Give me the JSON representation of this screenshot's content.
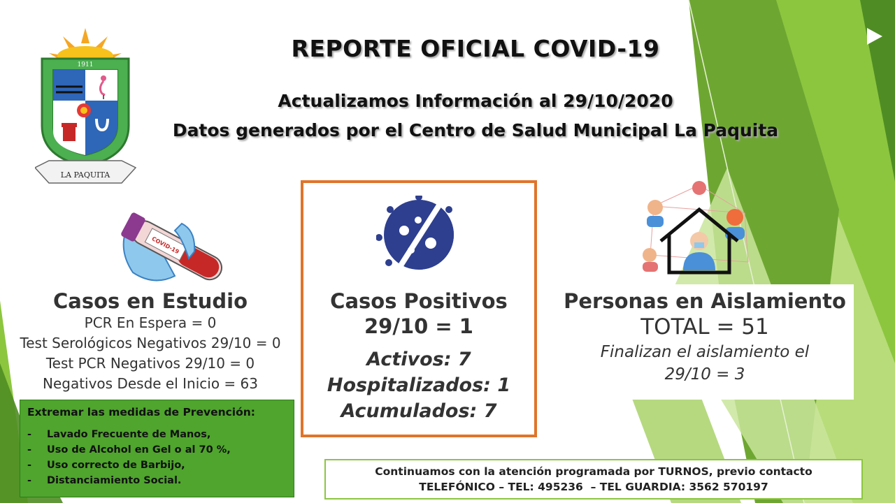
{
  "header": {
    "title": "REPORTE OFICIAL COVID-19",
    "subtitle_1": "Actualizamos Información al 29/10/2020",
    "subtitle_2": "Datos generados por el Centro de Salud Municipal La Paquita"
  },
  "crest": {
    "year": "1911",
    "ribbon": "LA PAQUITA"
  },
  "test_tube": {
    "label": "COVID-19"
  },
  "estudio": {
    "title": "Casos en Estudio",
    "lines": [
      "PCR En Espera = 0",
      "Test Serológicos Negativos 29/10 = 0",
      "Test PCR Negativos 29/10 = 0",
      "Negativos Desde el Inicio = 63"
    ]
  },
  "positivos": {
    "title": "Casos Positivos",
    "date_count": "29/10 = 1",
    "activos": "Activos: 7",
    "hospitalizados": "Hospitalizados: 1",
    "acumulados": "Acumulados: 7"
  },
  "aislamiento": {
    "title": "Personas en Aislamiento",
    "total": "TOTAL = 51",
    "finalizan_1": "Finalizan el aislamiento el",
    "finalizan_2": "29/10 = 3"
  },
  "prevencion": {
    "heading": "Extremar las medidas de Prevención:",
    "items": [
      "Lavado Frecuente de Manos,",
      "Uso de Alcohol en Gel o al 70 %,",
      "Uso correcto de Barbijo,",
      "Distanciamiento Social."
    ]
  },
  "contacto": {
    "line_1": "Continuamos con la atención programada por TURNOS, previo contacto",
    "line_2": "TELEFÓNICO – TEL: 495236  – TEL GUARDIA: 3562 570197"
  },
  "colors": {
    "accent_orange": "#e0742a",
    "green_dark": "#4fa52d",
    "green_light": "#8cc63f"
  },
  "icons": [
    "crest-logo",
    "test-tube-icon",
    "virus-icon",
    "isolation-house-icon"
  ]
}
